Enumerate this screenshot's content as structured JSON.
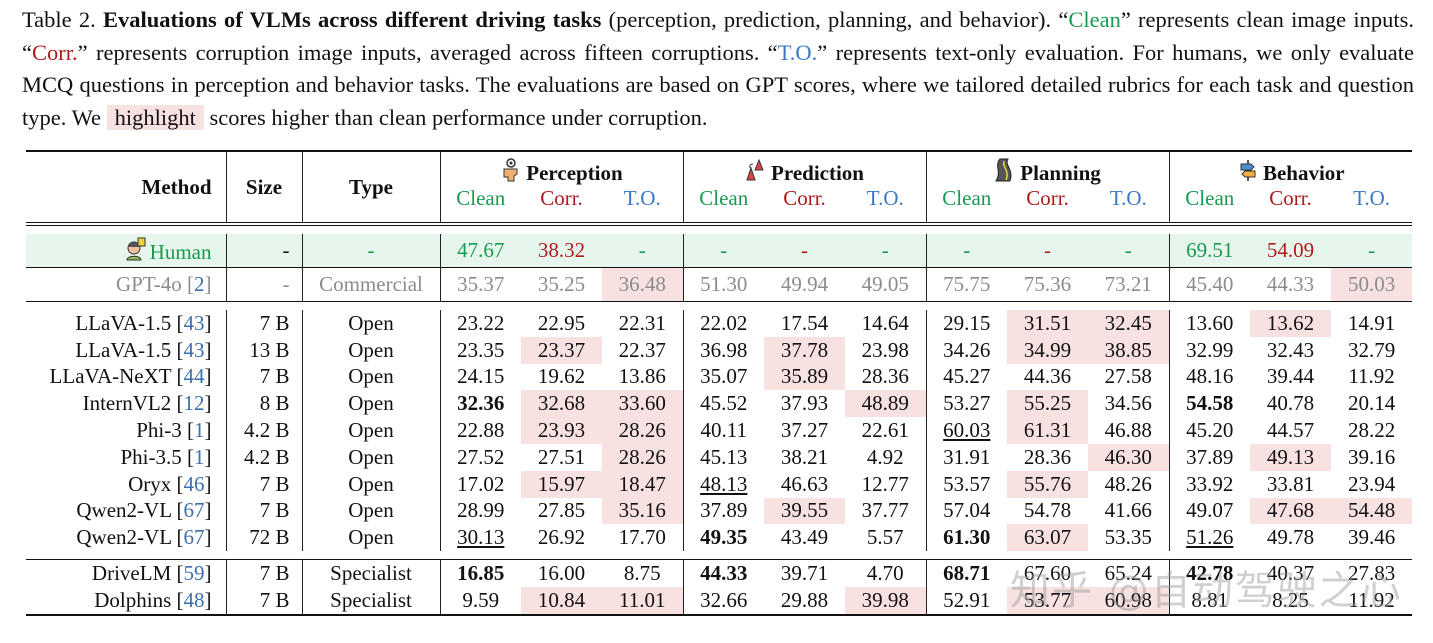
{
  "caption": {
    "label": "Table 2.",
    "title": "Evaluations of VLMs across different driving tasks",
    "t1": " (perception, prediction, planning, and behavior). “",
    "clean": "Clean",
    "t2": "” represents clean image inputs. “",
    "corr": "Corr.",
    "t3": "” represents corruption image inputs, averaged across fifteen corruptions. “",
    "to": "T.O.",
    "t4": "” represents text-only evaluation. For humans, we only evaluate MCQ questions in perception and behavior tasks. The evaluations are based on GPT scores, where we tailored detailed rubrics for each task and question type. We ",
    "highlight": "highlight",
    "t5": " scores higher than clean performance under corruption."
  },
  "headers": {
    "method": "Method",
    "size": "Size",
    "type": "Type",
    "groups": [
      {
        "label": "Perception",
        "icon": "eye-head-icon"
      },
      {
        "label": "Prediction",
        "icon": "traffic-cone-icon"
      },
      {
        "label": "Planning",
        "icon": "road-icon"
      },
      {
        "label": "Behavior",
        "icon": "direction-sign-icon"
      }
    ],
    "sub": [
      "Clean",
      "Corr.",
      "T.O."
    ]
  },
  "colors": {
    "clean": "#1a9a50",
    "corr": "#b01a1a",
    "to": "#3a78c8",
    "highlight": "#f7e1e1",
    "human_bg": "#e6f6ec"
  },
  "human": {
    "method": "Human",
    "size": "-",
    "type": "-",
    "values": [
      "47.67",
      "38.32",
      "-",
      "-",
      "-",
      "-",
      "-",
      "-",
      "-",
      "69.51",
      "54.09",
      "-"
    ]
  },
  "gpt": {
    "method": "GPT-4o",
    "cite": "2",
    "size": "-",
    "type": "Commercial",
    "values": [
      "35.37",
      "35.25",
      "36.48",
      "51.30",
      "49.94",
      "49.05",
      "75.75",
      "75.36",
      "73.21",
      "45.40",
      "44.33",
      "50.03"
    ],
    "hl": [
      2,
      11
    ]
  },
  "rows": [
    {
      "method": "LLaVA-1.5",
      "cite": "43",
      "size": "7 B",
      "type": "Open",
      "values": [
        "23.22",
        "22.95",
        "22.31",
        "22.02",
        "17.54",
        "14.64",
        "29.15",
        "31.51",
        "32.45",
        "13.60",
        "13.62",
        "14.91"
      ],
      "hl": [
        7,
        8,
        10
      ],
      "bold": [],
      "ul": []
    },
    {
      "method": "LLaVA-1.5",
      "cite": "43",
      "size": "13 B",
      "type": "Open",
      "values": [
        "23.35",
        "23.37",
        "22.37",
        "36.98",
        "37.78",
        "23.98",
        "34.26",
        "34.99",
        "38.85",
        "32.99",
        "32.43",
        "32.79"
      ],
      "hl": [
        1,
        4,
        7,
        8
      ],
      "bold": [],
      "ul": []
    },
    {
      "method": "LLaVA-NeXT",
      "cite": "44",
      "size": "7 B",
      "type": "Open",
      "values": [
        "24.15",
        "19.62",
        "13.86",
        "35.07",
        "35.89",
        "28.36",
        "45.27",
        "44.36",
        "27.58",
        "48.16",
        "39.44",
        "11.92"
      ],
      "hl": [
        4
      ],
      "bold": [],
      "ul": []
    },
    {
      "method": "InternVL2",
      "cite": "12",
      "size": "8 B",
      "type": "Open",
      "values": [
        "32.36",
        "32.68",
        "33.60",
        "45.52",
        "37.93",
        "48.89",
        "53.27",
        "55.25",
        "34.56",
        "54.58",
        "40.78",
        "20.14"
      ],
      "hl": [
        1,
        2,
        5,
        7
      ],
      "bold": [
        0,
        9
      ],
      "ul": []
    },
    {
      "method": "Phi-3",
      "cite": "1",
      "size": "4.2 B",
      "type": "Open",
      "values": [
        "22.88",
        "23.93",
        "28.26",
        "40.11",
        "37.27",
        "22.61",
        "60.03",
        "61.31",
        "46.88",
        "45.20",
        "44.57",
        "28.22"
      ],
      "hl": [
        1,
        2,
        7
      ],
      "bold": [],
      "ul": [
        6
      ]
    },
    {
      "method": "Phi-3.5",
      "cite": "1",
      "size": "4.2 B",
      "type": "Open",
      "values": [
        "27.52",
        "27.51",
        "28.26",
        "45.13",
        "38.21",
        "4.92",
        "31.91",
        "28.36",
        "46.30",
        "37.89",
        "49.13",
        "39.16"
      ],
      "hl": [
        2,
        8,
        10
      ],
      "bold": [],
      "ul": []
    },
    {
      "method": "Oryx",
      "cite": "46",
      "size": "7 B",
      "type": "Open",
      "values": [
        "17.02",
        "15.97",
        "18.47",
        "48.13",
        "46.63",
        "12.77",
        "53.57",
        "55.76",
        "48.26",
        "33.92",
        "33.81",
        "23.94"
      ],
      "hl": [
        1,
        2,
        7
      ],
      "bold": [],
      "ul": [
        3
      ]
    },
    {
      "method": "Qwen2-VL",
      "cite": "67",
      "size": "7 B",
      "type": "Open",
      "values": [
        "28.99",
        "27.85",
        "35.16",
        "37.89",
        "39.55",
        "37.77",
        "57.04",
        "54.78",
        "41.66",
        "49.07",
        "47.68",
        "54.48"
      ],
      "hl": [
        2,
        4,
        10,
        11
      ],
      "bold": [],
      "ul": []
    },
    {
      "method": "Qwen2-VL",
      "cite": "67",
      "size": "72 B",
      "type": "Open",
      "values": [
        "30.13",
        "26.92",
        "17.70",
        "49.35",
        "43.49",
        "5.57",
        "61.30",
        "63.07",
        "53.35",
        "51.26",
        "49.78",
        "39.46"
      ],
      "hl": [
        7
      ],
      "bold": [
        3,
        6
      ],
      "ul": [
        0,
        9
      ]
    }
  ],
  "specialists": [
    {
      "method": "DriveLM",
      "cite": "59",
      "size": "7 B",
      "type": "Specialist",
      "values": [
        "16.85",
        "16.00",
        "8.75",
        "44.33",
        "39.71",
        "4.70",
        "68.71",
        "67.60",
        "65.24",
        "42.78",
        "40.37",
        "27.83"
      ],
      "hl": [],
      "bold": [
        0,
        3,
        6,
        9
      ],
      "ul": []
    },
    {
      "method": "Dolphins",
      "cite": "48",
      "size": "7 B",
      "type": "Specialist",
      "values": [
        "9.59",
        "10.84",
        "11.01",
        "32.66",
        "29.88",
        "39.98",
        "52.91",
        "53.77",
        "60.98",
        "8.81",
        "8.25",
        "11.92"
      ],
      "hl": [
        1,
        2,
        5,
        7,
        8
      ],
      "bold": [],
      "ul": []
    }
  ],
  "watermark": "知乎 @自动驾驶之心"
}
